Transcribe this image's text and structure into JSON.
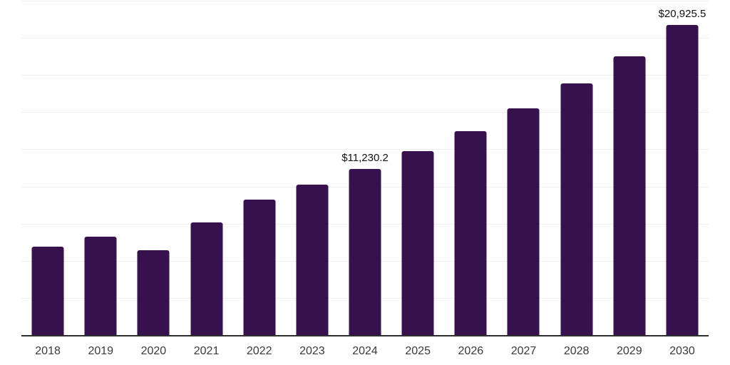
{
  "chart_data": {
    "type": "bar",
    "title": "",
    "xlabel": "",
    "ylabel": "",
    "categories": [
      "2018",
      "2019",
      "2020",
      "2021",
      "2022",
      "2023",
      "2024",
      "2025",
      "2026",
      "2027",
      "2028",
      "2029",
      "2030"
    ],
    "values": [
      5980,
      6690,
      5780,
      7650,
      9180,
      10180,
      11230.2,
      12430,
      13770,
      15300,
      16970,
      18830,
      20925.5
    ],
    "data_labels": [
      "",
      "",
      "",
      "",
      "",
      "",
      "$11,230.2",
      "",
      "",
      "",
      "",
      "",
      "$20,925.5"
    ],
    "ylim": [
      0,
      22500
    ],
    "gridline_interval": 2500,
    "grid": "horizontal",
    "legend_position": "none",
    "colors": {
      "bar": "#36114e",
      "gridline": "#f0f0f0",
      "axis_line": "#2e2e2e",
      "data_label": "#111111",
      "tick_label": "#3a3a3a",
      "background": "#ffffff"
    }
  }
}
